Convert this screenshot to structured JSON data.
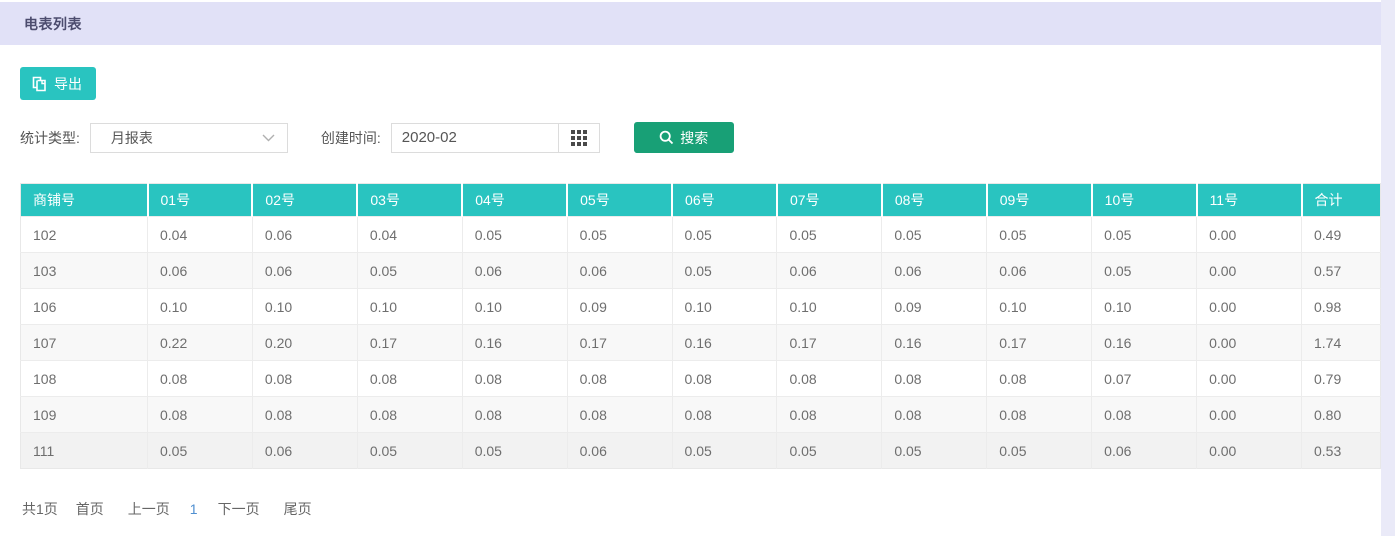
{
  "page": {
    "title": "电表列表"
  },
  "toolbar": {
    "export_label": "导出"
  },
  "filters": {
    "stat_type_label": "统计类型:",
    "stat_type_value": "月报表",
    "created_label": "创建时间:",
    "created_value": "2020-02",
    "search_label": "搜索"
  },
  "table": {
    "columns": [
      "商铺号",
      "01号",
      "02号",
      "03号",
      "04号",
      "05号",
      "06号",
      "07号",
      "08号",
      "09号",
      "10号",
      "11号",
      "合计"
    ],
    "rows": [
      {
        "shop": "102",
        "values": [
          "0.04",
          "0.06",
          "0.04",
          "0.05",
          "0.05",
          "0.05",
          "0.05",
          "0.05",
          "0.05",
          "0.05",
          "0.00",
          "0.49"
        ]
      },
      {
        "shop": "103",
        "values": [
          "0.06",
          "0.06",
          "0.05",
          "0.06",
          "0.06",
          "0.05",
          "0.06",
          "0.06",
          "0.06",
          "0.05",
          "0.00",
          "0.57"
        ]
      },
      {
        "shop": "106",
        "values": [
          "0.10",
          "0.10",
          "0.10",
          "0.10",
          "0.09",
          "0.10",
          "0.10",
          "0.09",
          "0.10",
          "0.10",
          "0.00",
          "0.98"
        ]
      },
      {
        "shop": "107",
        "values": [
          "0.22",
          "0.20",
          "0.17",
          "0.16",
          "0.17",
          "0.16",
          "0.17",
          "0.16",
          "0.17",
          "0.16",
          "0.00",
          "1.74"
        ]
      },
      {
        "shop": "108",
        "values": [
          "0.08",
          "0.08",
          "0.08",
          "0.08",
          "0.08",
          "0.08",
          "0.08",
          "0.08",
          "0.08",
          "0.07",
          "0.00",
          "0.79"
        ]
      },
      {
        "shop": "109",
        "values": [
          "0.08",
          "0.08",
          "0.08",
          "0.08",
          "0.08",
          "0.08",
          "0.08",
          "0.08",
          "0.08",
          "0.08",
          "0.00",
          "0.80"
        ]
      },
      {
        "shop": "111",
        "values": [
          "0.05",
          "0.06",
          "0.05",
          "0.05",
          "0.06",
          "0.05",
          "0.05",
          "0.05",
          "0.05",
          "0.06",
          "0.00",
          "0.53"
        ]
      }
    ]
  },
  "pagination": {
    "total": "共1页",
    "first": "首页",
    "prev": "上一页",
    "current": "1",
    "next": "下一页",
    "last": "尾页"
  },
  "colors": {
    "topbar_bg": "#e1e1f7",
    "title_text": "#4c4c6e",
    "teal_accent": "#29c4c0",
    "search_green": "#18a076",
    "stripe_row": "#f8f8f8",
    "current_page_blue": "#4f8fd0"
  }
}
